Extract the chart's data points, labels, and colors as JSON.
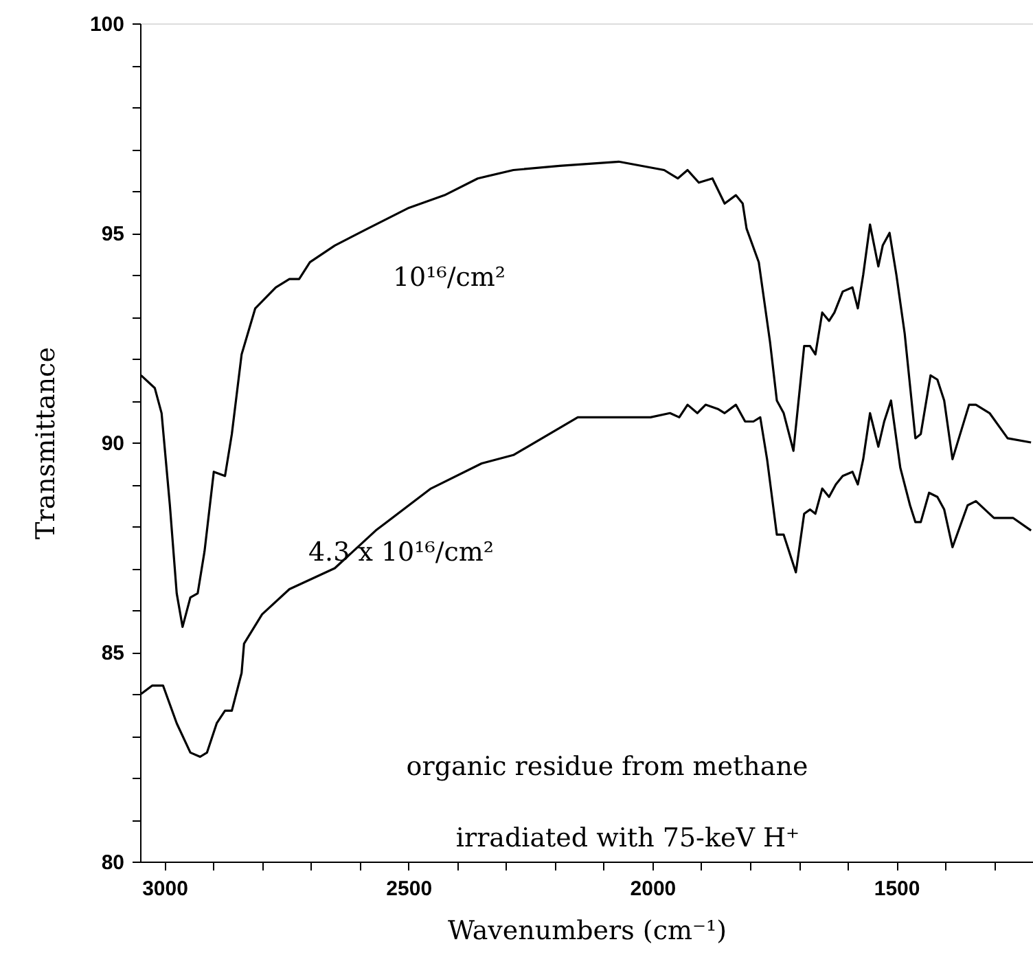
{
  "chart_data": {
    "type": "line",
    "xlabel": "Wavenumbers (cm⁻¹)",
    "ylabel": "Transmittance",
    "xlim": [
      3050,
      1220
    ],
    "ylim": [
      80,
      100
    ],
    "xticks": [
      3000,
      {
        "value": 2900,
        "label": null
      },
      {
        "value": 2800,
        "label": null
      },
      {
        "value": 2700,
        "label": null
      },
      {
        "value": 2600,
        "label": null
      },
      2500,
      {
        "value": 2400,
        "label": null
      },
      {
        "value": 2300,
        "label": null
      },
      {
        "value": 2200,
        "label": null
      },
      {
        "value": 2100,
        "label": null
      },
      2000,
      {
        "value": 1900,
        "label": null
      },
      {
        "value": 1800,
        "label": null
      },
      {
        "value": 1700,
        "label": null
      },
      {
        "value": 1600,
        "label": null
      },
      1500,
      {
        "value": 1400,
        "label": null
      },
      {
        "value": 1300,
        "label": null
      }
    ],
    "yticks": [
      80,
      {
        "value": 81,
        "label": null
      },
      {
        "value": 82,
        "label": null
      },
      {
        "value": 83,
        "label": null
      },
      {
        "value": 84,
        "label": null
      },
      85,
      {
        "value": 86,
        "label": null
      },
      {
        "value": 87,
        "label": null
      },
      {
        "value": 88,
        "label": null
      },
      {
        "value": 89,
        "label": null
      },
      90,
      {
        "value": 91,
        "label": null
      },
      {
        "value": 92,
        "label": null
      },
      {
        "value": 93,
        "label": null
      },
      {
        "value": 94,
        "label": null
      },
      95,
      {
        "value": 96,
        "label": null
      },
      {
        "value": 97,
        "label": null
      },
      {
        "value": 98,
        "label": null
      },
      {
        "value": 99,
        "label": null
      },
      100
    ],
    "grid": false,
    "marker": "none",
    "line_style": "solid",
    "series": [
      {
        "name": "10¹⁶/cm²",
        "color": "#000000",
        "x": [
          3048,
          3020,
          3006,
          2989,
          2975,
          2963,
          2947,
          2932,
          2918,
          2899,
          2876,
          2862,
          2842,
          2814,
          2772,
          2744,
          2724,
          2702,
          2651,
          2584,
          2499,
          2426,
          2358,
          2285,
          2190,
          2069,
          1976,
          1948,
          1928,
          1905,
          1877,
          1852,
          1829,
          1815,
          1807,
          1782,
          1759,
          1745,
          1731,
          1711,
          1689,
          1677,
          1666,
          1652,
          1638,
          1627,
          1610,
          1590,
          1579,
          1568,
          1554,
          1537,
          1528,
          1514,
          1500,
          1483,
          1461,
          1450,
          1430,
          1416,
          1402,
          1385,
          1351,
          1337,
          1309,
          1272,
          1224
        ],
        "values": [
          91.6,
          91.3,
          90.7,
          88.5,
          86.4,
          85.6,
          86.3,
          86.4,
          87.4,
          89.3,
          89.2,
          90.2,
          92.1,
          93.2,
          93.7,
          93.9,
          93.9,
          94.3,
          94.7,
          95.1,
          95.6,
          95.9,
          96.3,
          96.5,
          96.6,
          96.7,
          96.5,
          96.3,
          96.5,
          96.2,
          96.3,
          95.7,
          95.9,
          95.7,
          95.1,
          94.3,
          92.4,
          91.0,
          90.7,
          89.8,
          92.3,
          92.3,
          92.1,
          93.1,
          92.9,
          93.1,
          93.6,
          93.7,
          93.2,
          94.0,
          95.2,
          94.2,
          94.7,
          95.0,
          94.0,
          92.6,
          90.1,
          90.2,
          91.6,
          91.5,
          91.0,
          89.6,
          90.9,
          90.9,
          90.7,
          90.1,
          90.0
        ]
      },
      {
        "name": "4.3 x 10¹⁶/cm²",
        "color": "#000000",
        "x": [
          3048,
          3025,
          3003,
          2975,
          2947,
          2927,
          2913,
          2893,
          2876,
          2862,
          2842,
          2837,
          2800,
          2744,
          2651,
          2567,
          2454,
          2350,
          2285,
          2153,
          2004,
          1964,
          1945,
          1928,
          1908,
          1891,
          1866,
          1852,
          1829,
          1810,
          1793,
          1779,
          1765,
          1745,
          1731,
          1706,
          1689,
          1677,
          1666,
          1652,
          1638,
          1624,
          1610,
          1590,
          1579,
          1568,
          1554,
          1537,
          1525,
          1511,
          1492,
          1472,
          1461,
          1450,
          1433,
          1416,
          1402,
          1385,
          1354,
          1337,
          1300,
          1261,
          1224
        ],
        "values": [
          84.0,
          84.2,
          84.2,
          83.3,
          82.6,
          82.5,
          82.6,
          83.3,
          83.6,
          83.6,
          84.5,
          85.2,
          85.9,
          86.5,
          87.0,
          87.9,
          88.9,
          89.5,
          89.7,
          90.6,
          90.6,
          90.7,
          90.6,
          90.9,
          90.7,
          90.9,
          90.8,
          90.7,
          90.9,
          90.5,
          90.5,
          90.6,
          89.6,
          87.8,
          87.8,
          86.9,
          88.3,
          88.4,
          88.3,
          88.9,
          88.7,
          89.0,
          89.2,
          89.3,
          89.0,
          89.6,
          90.7,
          89.9,
          90.5,
          91.0,
          89.4,
          88.5,
          88.1,
          88.1,
          88.8,
          88.7,
          88.4,
          87.5,
          88.5,
          88.6,
          88.2,
          88.2,
          87.9
        ]
      }
    ],
    "annotations": [
      "organic residue from methane",
      "irradiated with 75-keV H⁺"
    ]
  }
}
